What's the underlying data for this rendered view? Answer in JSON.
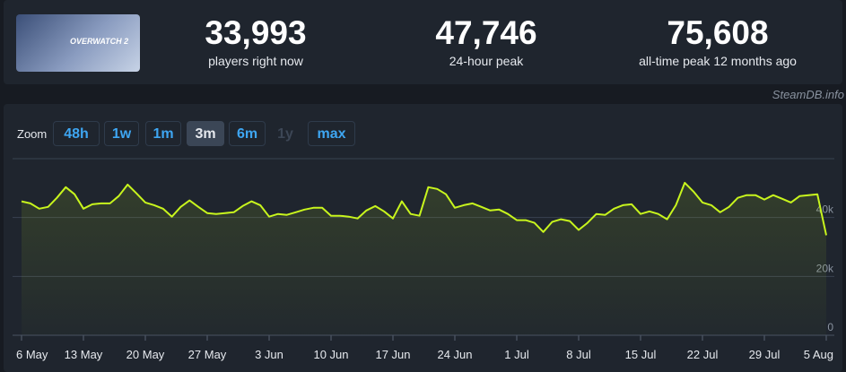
{
  "header": {
    "game_logo": "OVERWATCH 2",
    "stats": [
      {
        "value": "33,993",
        "label": "players right now"
      },
      {
        "value": "47,746",
        "label": "24-hour peak"
      },
      {
        "value": "75,608",
        "label": "all-time peak 12 months ago"
      }
    ],
    "source": "SteamDB.info"
  },
  "zoom": {
    "label": "Zoom",
    "options": [
      "48h",
      "1w",
      "1m",
      "3m",
      "6m",
      "1y",
      "max"
    ],
    "active": 3,
    "disabled": [
      5
    ]
  },
  "chart_data": {
    "type": "line",
    "color": "#c8f51d",
    "grid": true,
    "ylim": [
      0,
      60000
    ],
    "yticks": [
      0,
      {
        "value": 20000,
        "label": "20k"
      },
      {
        "value": 40000,
        "label": "40k"
      }
    ],
    "xlim": [
      "6 May",
      "5 Aug"
    ],
    "xticks": [
      "6 May",
      "13 May",
      "20 May",
      "27 May",
      "3 Jun",
      "10 Jun",
      "17 Jun",
      "24 Jun",
      "1 Jul",
      "8 Jul",
      "15 Jul",
      "22 Jul",
      "29 Jul",
      "5 Aug"
    ],
    "x": [
      "6 May",
      "7 May",
      "8 May",
      "9 May",
      "10 May",
      "11 May",
      "12 May",
      "13 May",
      "14 May",
      "15 May",
      "16 May",
      "17 May",
      "18 May",
      "19 May",
      "20 May",
      "21 May",
      "22 May",
      "23 May",
      "24 May",
      "25 May",
      "26 May",
      "27 May",
      "28 May",
      "29 May",
      "30 May",
      "31 May",
      "1 Jun",
      "2 Jun",
      "3 Jun",
      "4 Jun",
      "5 Jun",
      "6 Jun",
      "7 Jun",
      "8 Jun",
      "9 Jun",
      "10 Jun",
      "11 Jun",
      "12 Jun",
      "13 Jun",
      "14 Jun",
      "15 Jun",
      "16 Jun",
      "17 Jun",
      "18 Jun",
      "19 Jun",
      "20 Jun",
      "21 Jun",
      "22 Jun",
      "23 Jun",
      "24 Jun",
      "25 Jun",
      "26 Jun",
      "27 Jun",
      "28 Jun",
      "29 Jun",
      "30 Jun",
      "1 Jul",
      "2 Jul",
      "3 Jul",
      "4 Jul",
      "5 Jul",
      "6 Jul",
      "7 Jul",
      "8 Jul",
      "9 Jul",
      "10 Jul",
      "11 Jul",
      "12 Jul",
      "13 Jul",
      "14 Jul",
      "15 Jul",
      "16 Jul",
      "17 Jul",
      "18 Jul",
      "19 Jul",
      "20 Jul",
      "21 Jul",
      "22 Jul",
      "23 Jul",
      "24 Jul",
      "25 Jul",
      "26 Jul",
      "27 Jul",
      "28 Jul",
      "29 Jul",
      "30 Jul",
      "31 Jul",
      "1 Aug",
      "2 Aug",
      "3 Aug",
      "4 Aug",
      "5 Aug"
    ],
    "values": [
      45500,
      44800,
      43000,
      43600,
      46700,
      50300,
      47900,
      43000,
      44500,
      44800,
      44800,
      47300,
      51200,
      48200,
      45100,
      44200,
      43000,
      40300,
      43600,
      45800,
      43600,
      41500,
      41200,
      41500,
      41800,
      43900,
      45500,
      44200,
      40300,
      41200,
      40900,
      41800,
      42700,
      43300,
      43300,
      40600,
      40600,
      40300,
      39700,
      42400,
      43900,
      42100,
      39700,
      45500,
      41200,
      40600,
      50300,
      49700,
      47900,
      43300,
      44200,
      44800,
      43600,
      42400,
      42700,
      41200,
      39100,
      39100,
      38200,
      35100,
      38500,
      39400,
      38800,
      35800,
      38200,
      41200,
      40900,
      43000,
      44200,
      44500,
      41200,
      42100,
      41200,
      39400,
      44200,
      51800,
      48800,
      45100,
      44200,
      41800,
      43600,
      46700,
      47600,
      47600,
      46100,
      47600,
      46400,
      45100,
      47300,
      47600,
      47900,
      34000
    ]
  }
}
